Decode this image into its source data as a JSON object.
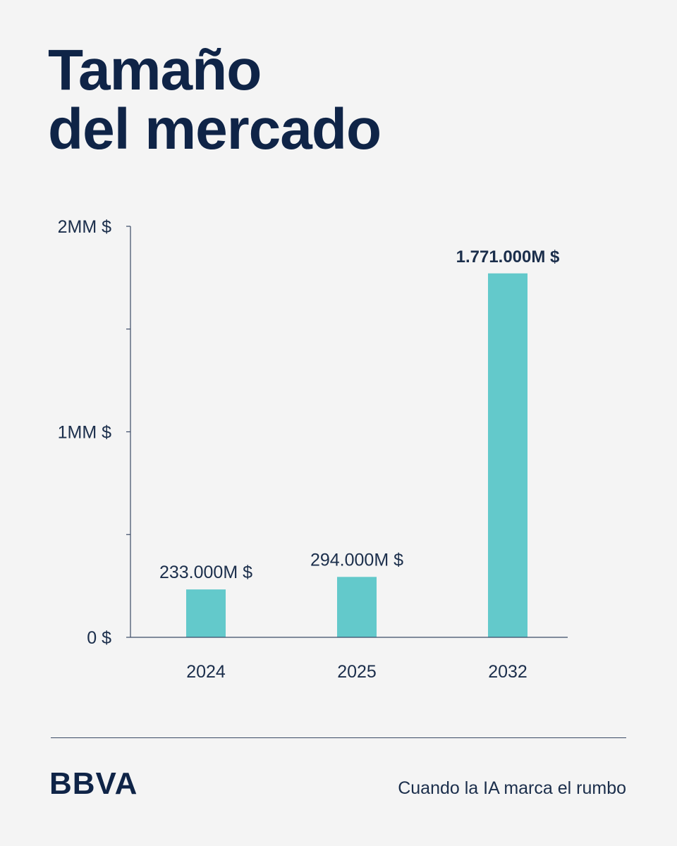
{
  "header": {
    "title_line1": "Tamaño",
    "title_line2": "del mercado"
  },
  "footer": {
    "logo_text": "BBVA",
    "tagline": "Cuando la IA marca el rumbo"
  },
  "colors": {
    "bar": "#63c9cb",
    "text": "#0f2447",
    "axis": "#3b4a66",
    "background": "#f4f4f4"
  },
  "chart_data": {
    "type": "bar",
    "categories": [
      "2024",
      "2025",
      "2032"
    ],
    "values": [
      233000,
      294000,
      1771000
    ],
    "value_unit": "M $",
    "data_labels": [
      "233.000M $",
      "294.000M $",
      "1.771.000M $"
    ],
    "highlighted_index": 2,
    "ylim": [
      0,
      2000000
    ],
    "yticks": [
      {
        "value": 0,
        "label": "0 $"
      },
      {
        "value": 500000,
        "label": ""
      },
      {
        "value": 1000000,
        "label": "1MM $"
      },
      {
        "value": 1500000,
        "label": ""
      },
      {
        "value": 2000000,
        "label": "2MM $"
      }
    ],
    "title": "",
    "xlabel": "",
    "ylabel": "",
    "grid": false
  }
}
